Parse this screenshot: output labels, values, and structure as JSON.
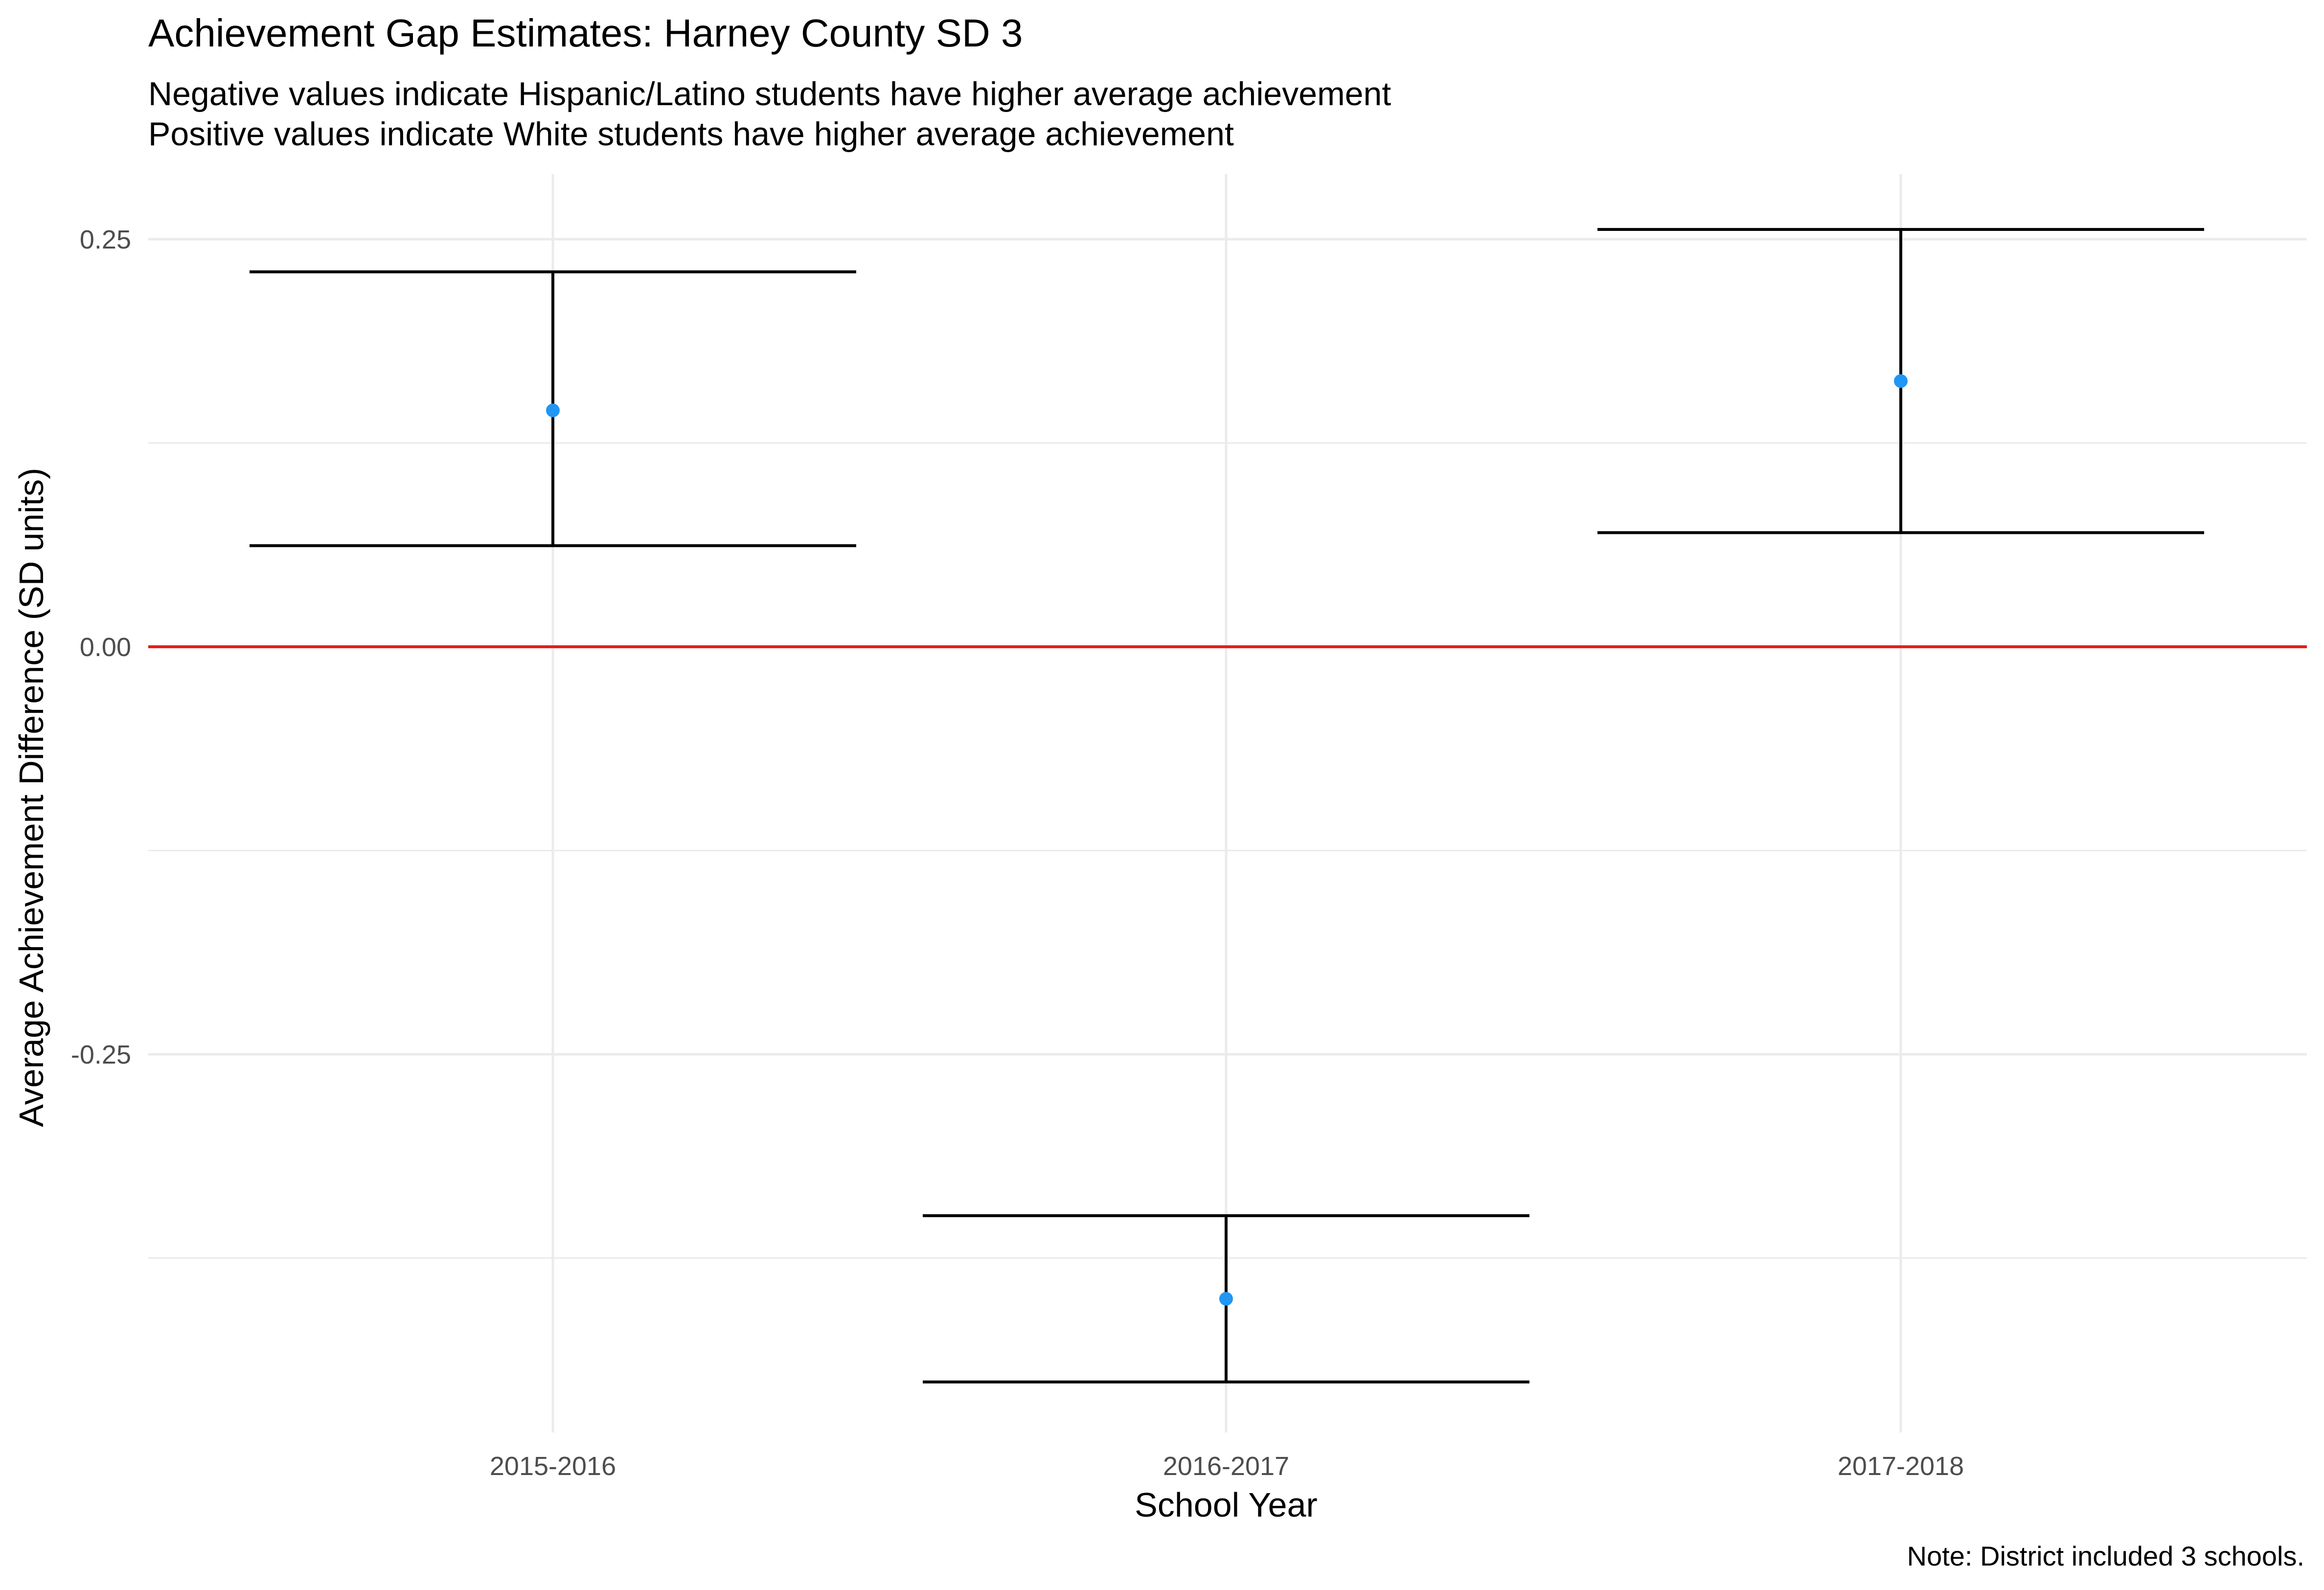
{
  "chart_data": {
    "type": "errorbar",
    "title": "Achievement Gap Estimates: Harney County SD 3",
    "subtitle": [
      "Negative values indicate Hispanic/Latino students have higher average achievement",
      "Positive values indicate White students have higher average achievement"
    ],
    "caption": "Note: District included 3 schools.",
    "xlabel": "School Year",
    "ylabel": "Average Achievement Difference (SD units)",
    "categories": [
      "2015-2016",
      "2016-2017",
      "2017-2018"
    ],
    "estimates": [
      0.145,
      -0.4,
      0.163
    ],
    "lower": [
      0.062,
      -0.451,
      0.07
    ],
    "upper": [
      0.23,
      -0.349,
      0.256
    ],
    "y_ticks": [
      0.25,
      0.0,
      -0.25
    ],
    "y_tick_labels": [
      "0.25",
      "0.00",
      "-0.25"
    ],
    "ylim": [
      -0.482,
      0.29
    ],
    "reference_line": 0,
    "grid": true,
    "legend": "none",
    "colors": {
      "point": "#2196F3",
      "errorbar": "#000000",
      "reference_line": "#E0201B",
      "grid": "#EBEBEB"
    }
  }
}
